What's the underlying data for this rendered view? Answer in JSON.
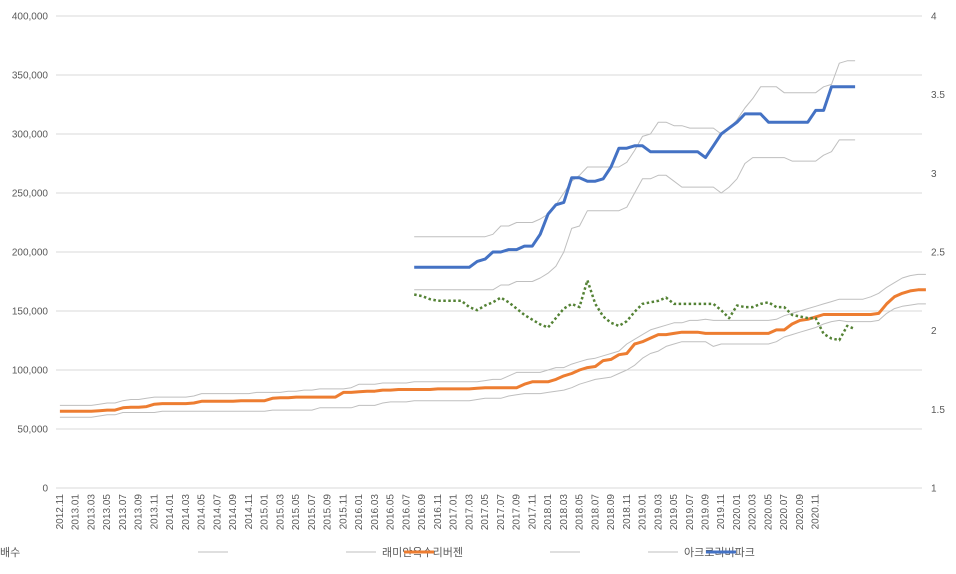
{
  "chart_data": {
    "type": "line",
    "title": "",
    "xlabel": "",
    "ylabel": "",
    "ylim": [
      0,
      400000
    ],
    "y2lim": [
      1,
      4
    ],
    "y_ticks": [
      "0",
      "50,000",
      "100,000",
      "150,000",
      "200,000",
      "250,000",
      "300,000",
      "350,000",
      "400,000"
    ],
    "y2_ticks": [
      "1",
      "1.5",
      "2",
      "2.5",
      "3",
      "3.5",
      "4"
    ],
    "x_start": "2012.11",
    "x_tick_labels": [
      "2012.11",
      "2013.01",
      "2013.03",
      "2013.05",
      "2013.07",
      "2013.09",
      "2013.11",
      "2014.01",
      "2014.03",
      "2014.05",
      "2014.07",
      "2014.09",
      "2014.11",
      "2015.01",
      "2015.03",
      "2015.05",
      "2015.07",
      "2015.09",
      "2015.11",
      "2016.01",
      "2016.03",
      "2016.05",
      "2016.07",
      "2016.09",
      "2016.11",
      "2017.01",
      "2017.03",
      "2017.05",
      "2017.07",
      "2017.09",
      "2017.11",
      "2018.01",
      "2018.03",
      "2018.05",
      "2018.07",
      "2018.09",
      "2018.11",
      "2019.01",
      "2019.03",
      "2019.05",
      "2019.07",
      "2019.09",
      "2019.11",
      "2020.01",
      "2020.03",
      "2020.05",
      "2020.07",
      "2020.09",
      "2020.11"
    ],
    "legend_position": "bottom",
    "colors": {
      "range": "#bfbfbf",
      "main1": "#ed7d31",
      "main2": "#4472c4",
      "ratio": "#548235",
      "grid": "#d9d9d9",
      "axis": "#595959"
    },
    "series": [
      {
        "name": "",
        "kind": "range-high",
        "group": "래미안옥수리버젠",
        "start": 0,
        "values": [
          70000,
          70000,
          70000,
          70000,
          70000,
          71000,
          72000,
          72000,
          74000,
          75000,
          75000,
          76000,
          77000,
          77000,
          77000,
          77000,
          77000,
          78000,
          80000,
          80000,
          80000,
          80000,
          80000,
          80000,
          80000,
          81000,
          81000,
          81000,
          81000,
          82000,
          82000,
          83000,
          83000,
          84000,
          84000,
          84000,
          84000,
          85000,
          88000,
          88000,
          88000,
          89000,
          89000,
          89000,
          89000,
          90000,
          90000,
          90000,
          90000,
          90000,
          90000,
          90000,
          90000,
          90000,
          91000,
          92000,
          92000,
          95000,
          98000,
          98000,
          98000,
          98000,
          100000,
          102000,
          102000,
          105000,
          107000,
          109000,
          110000,
          112000,
          114000,
          116000,
          122000,
          126000,
          130000,
          134000,
          136000,
          138000,
          140000,
          140000,
          142000,
          142000,
          143000,
          142000,
          142000,
          142000,
          142000,
          142000,
          142000,
          142000,
          142000,
          143000,
          146000,
          148000,
          150000,
          152000,
          154000,
          156000,
          158000,
          160000,
          160000,
          160000,
          160000,
          162000,
          165000,
          170000,
          174000,
          178000,
          180000,
          181000,
          181000
        ]
      },
      {
        "name": "래미안옥수리버젠",
        "kind": "range-low",
        "group": "래미안옥수리버젠",
        "start": 0,
        "values": [
          60000,
          60000,
          60000,
          60000,
          60000,
          61000,
          62000,
          62000,
          64000,
          64000,
          64000,
          64000,
          64000,
          65000,
          65000,
          65000,
          65000,
          65000,
          65000,
          65000,
          65000,
          65000,
          65000,
          65000,
          65000,
          65000,
          65000,
          66000,
          66000,
          66000,
          66000,
          66000,
          66000,
          68000,
          68000,
          68000,
          68000,
          68000,
          70000,
          70000,
          70000,
          72000,
          73000,
          73000,
          73000,
          74000,
          74000,
          74000,
          74000,
          74000,
          74000,
          74000,
          74000,
          75000,
          76000,
          76000,
          76000,
          78000,
          79000,
          80000,
          80000,
          80000,
          81000,
          82000,
          83000,
          85000,
          88000,
          90000,
          92000,
          93000,
          94000,
          97000,
          100000,
          104000,
          110000,
          114000,
          116000,
          120000,
          122000,
          124000,
          124000,
          124000,
          124000,
          120000,
          122000,
          122000,
          122000,
          122000,
          122000,
          122000,
          122000,
          124000,
          128000,
          130000,
          132000,
          134000,
          136000,
          139000,
          141000,
          142000,
          141000,
          141000,
          141000,
          141000,
          142000,
          148000,
          152000,
          154000,
          155000,
          156000,
          156000
        ]
      },
      {
        "name": "",
        "kind": "main",
        "group": "래미안옥수리버젠",
        "start": 0,
        "values": [
          65000,
          65000,
          65000,
          65000,
          65000,
          65500,
          66000,
          66000,
          68000,
          68500,
          68500,
          69000,
          71000,
          71500,
          71500,
          71500,
          71500,
          72000,
          73500,
          73500,
          73500,
          73500,
          73500,
          74000,
          74000,
          74000,
          74000,
          76000,
          76500,
          76500,
          77000,
          77000,
          77000,
          77000,
          77000,
          77000,
          81000,
          81000,
          81500,
          82000,
          82000,
          83000,
          83000,
          83500,
          83500,
          83500,
          83500,
          83500,
          84000,
          84000,
          84000,
          84000,
          84000,
          84500,
          85000,
          85000,
          85000,
          85000,
          85000,
          88000,
          90000,
          90000,
          90000,
          92000,
          95000,
          97000,
          100000,
          102000,
          103000,
          108000,
          109000,
          113000,
          114000,
          122000,
          124000,
          127000,
          130000,
          130000,
          131000,
          132000,
          132000,
          132000,
          131000,
          131000,
          131000,
          131000,
          131000,
          131000,
          131000,
          131000,
          131000,
          134000,
          134000,
          139000,
          142000,
          143000,
          145000,
          147000,
          147000,
          147000,
          147000,
          147000,
          147000,
          147000,
          148000,
          156000,
          162000,
          165000,
          167000,
          168000,
          168000
        ]
      },
      {
        "name": "",
        "kind": "range-high",
        "group": "아크로리버파크",
        "start": 45,
        "values": [
          213000,
          213000,
          213000,
          213000,
          213000,
          213000,
          213000,
          213000,
          213000,
          213000,
          215000,
          222000,
          222000,
          225000,
          225000,
          225000,
          228000,
          232000,
          240000,
          250000,
          260000,
          265000,
          272000,
          272000,
          272000,
          272000,
          272000,
          276000,
          286000,
          298000,
          300000,
          310000,
          310000,
          307000,
          307000,
          305000,
          305000,
          305000,
          305000,
          300000,
          305000,
          312000,
          322000,
          330000,
          340000,
          340000,
          340000,
          335000,
          335000,
          335000,
          335000,
          335000,
          340000,
          342000,
          360000,
          362000,
          362000
        ]
      },
      {
        "name": "아크로리버파크",
        "kind": "range-low",
        "group": "아크로리버파크",
        "start": 45,
        "values": [
          168000,
          168000,
          168000,
          168000,
          168000,
          168000,
          168000,
          168000,
          168000,
          168000,
          168000,
          172000,
          172000,
          175000,
          175000,
          175000,
          178000,
          182000,
          188000,
          200000,
          220000,
          222000,
          235000,
          235000,
          235000,
          235000,
          235000,
          238000,
          250000,
          262000,
          262000,
          265000,
          265000,
          260000,
          255000,
          255000,
          255000,
          255000,
          255000,
          250000,
          255000,
          262000,
          275000,
          280000,
          280000,
          280000,
          280000,
          280000,
          277000,
          277000,
          277000,
          277000,
          282000,
          285000,
          295000,
          295000,
          295000
        ]
      },
      {
        "name": "",
        "kind": "main",
        "group": "아크로리버파크",
        "start": 45,
        "values": [
          187000,
          187000,
          187000,
          187000,
          187000,
          187000,
          187000,
          187000,
          192000,
          194000,
          200000,
          200000,
          202000,
          202000,
          205000,
          205000,
          215000,
          232000,
          240000,
          242000,
          263000,
          263000,
          260000,
          260000,
          262000,
          272000,
          288000,
          288000,
          290000,
          290000,
          285000,
          285000,
          285000,
          285000,
          285000,
          285000,
          285000,
          280000,
          290000,
          300000,
          305000,
          310000,
          317000,
          317000,
          317000,
          310000,
          310000,
          310000,
          310000,
          310000,
          310000,
          320000,
          320000,
          340000,
          340000,
          340000,
          340000
        ]
      },
      {
        "name": "배수",
        "kind": "ratio",
        "group": "배수",
        "start": 45,
        "values": [
          2.23,
          2.22,
          2.2,
          2.19,
          2.19,
          2.19,
          2.19,
          2.15,
          2.13,
          2.16,
          2.18,
          2.21,
          2.18,
          2.14,
          2.1,
          2.07,
          2.04,
          2.02,
          2.08,
          2.14,
          2.17,
          2.15,
          2.32,
          2.17,
          2.09,
          2.05,
          2.03,
          2.06,
          2.12,
          2.17,
          2.18,
          2.19,
          2.21,
          2.17,
          2.17,
          2.17,
          2.17,
          2.17,
          2.17,
          2.13,
          2.08,
          2.16,
          2.15,
          2.15,
          2.17,
          2.18,
          2.15,
          2.15,
          2.1,
          2.09,
          2.08,
          2.08,
          1.98,
          1.95,
          1.94,
          2.03,
          2.01
        ]
      }
    ]
  }
}
